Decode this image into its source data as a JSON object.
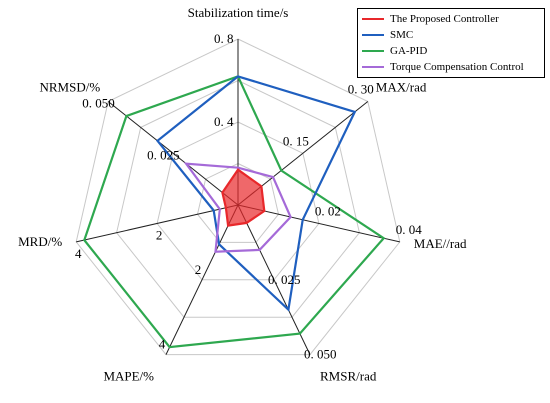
{
  "chart_data": {
    "type": "radar",
    "axes": [
      {
        "label": "Stabilization time/s",
        "max": 0.8,
        "ticks": [
          {
            "value": 0.4,
            "label": "0. 4"
          },
          {
            "value": 0.8,
            "label": "0. 8"
          }
        ]
      },
      {
        "label": "MAX/rad",
        "max": 0.3,
        "ticks": [
          {
            "value": 0.15,
            "label": "0. 15"
          },
          {
            "value": 0.3,
            "label": "0. 30"
          }
        ]
      },
      {
        "label": "MAE//rad",
        "max": 0.04,
        "ticks": [
          {
            "value": 0.02,
            "label": "0. 02"
          },
          {
            "value": 0.04,
            "label": "0. 04"
          }
        ]
      },
      {
        "label": "RMSR/rad",
        "max": 0.05,
        "ticks": [
          {
            "value": 0.025,
            "label": "0. 025"
          },
          {
            "value": 0.05,
            "label": "0. 050"
          }
        ]
      },
      {
        "label": "MAPE/%",
        "max": 4,
        "ticks": [
          {
            "value": 2,
            "label": "2"
          },
          {
            "value": 4,
            "label": "4"
          }
        ]
      },
      {
        "label": "MRD/%",
        "max": 4,
        "ticks": [
          {
            "value": 2,
            "label": "2"
          },
          {
            "value": 4,
            "label": "4"
          }
        ]
      },
      {
        "label": "NRMSD/%",
        "max": 0.05,
        "ticks": [
          {
            "value": 0.025,
            "label": "0. 025"
          },
          {
            "value": 0.05,
            "label": "0. 050"
          }
        ]
      }
    ],
    "series": [
      {
        "name": "The Proposed Controller",
        "color": "#e8282b",
        "fill": "#e8282b",
        "fill_opacity": 0.7,
        "values": [
          0.17,
          0.054,
          0.0065,
          0.006,
          0.55,
          0.3,
          0.006
        ]
      },
      {
        "name": "SMC",
        "color": "#1f5fbf",
        "values": [
          0.62,
          0.27,
          0.016,
          0.035,
          1.05,
          0.6,
          0.031
        ]
      },
      {
        "name": "GA-PID",
        "color": "#2ea84f",
        "values": [
          0.62,
          0.1,
          0.036,
          0.043,
          3.8,
          3.8,
          0.043
        ]
      },
      {
        "name": "Torque Compensation Control",
        "color": "#a56ad8",
        "values": [
          0.18,
          0.081,
          0.013,
          0.015,
          1.25,
          0.45,
          0.02
        ]
      }
    ],
    "grid_levels": 4,
    "legend_position": "top-right"
  }
}
